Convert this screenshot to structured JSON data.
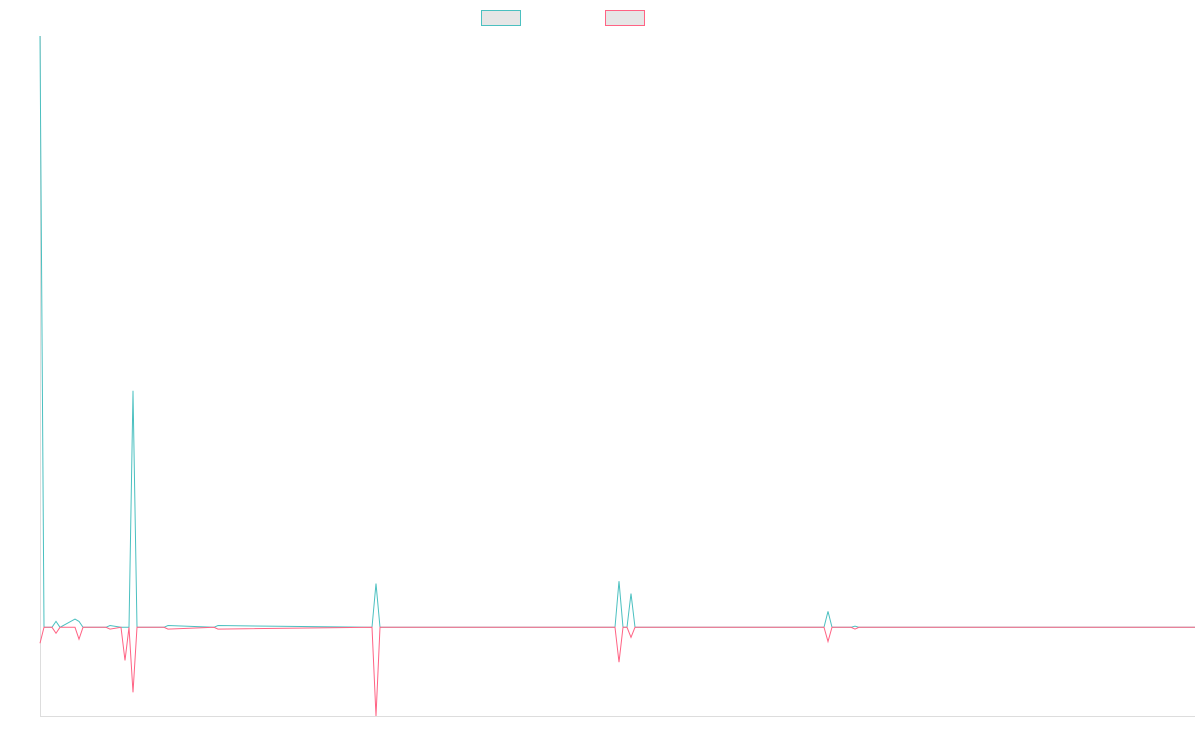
{
  "chart_data": {
    "type": "line",
    "x": [
      0,
      4,
      12,
      16,
      20,
      35,
      39,
      43,
      66,
      70,
      81,
      85,
      89,
      93,
      97,
      124,
      128,
      174,
      178,
      332,
      336,
      340,
      575,
      579,
      583,
      587,
      591,
      595,
      784,
      788,
      792,
      811,
      815,
      819,
      1155
    ],
    "series": [
      {
        "color": "#4bc0c0",
        "values": [
          10,
          0,
          0,
          0.1,
          0,
          0.14,
          0.1,
          0,
          0,
          0.03,
          0,
          0,
          0,
          4,
          0,
          0,
          0.03,
          0,
          0.03,
          0,
          0.74,
          0,
          0,
          0.78,
          0,
          0,
          0.57,
          0,
          0,
          0.27,
          0,
          0,
          0.02,
          0,
          0
        ]
      },
      {
        "color": "#ff6384",
        "values": [
          -0.27,
          0,
          0,
          -0.1,
          0,
          0,
          -0.2,
          0,
          0,
          -0.03,
          0,
          -0.56,
          0,
          -1.1,
          0,
          0,
          -0.03,
          0,
          -0.03,
          0,
          -1.5,
          0,
          0,
          -0.59,
          0,
          0,
          -0.17,
          0,
          0,
          -0.24,
          0,
          0,
          -0.03,
          0,
          0
        ]
      }
    ],
    "xlim": [
      0,
      1155
    ],
    "ylim": [
      -1.5,
      10
    ]
  }
}
